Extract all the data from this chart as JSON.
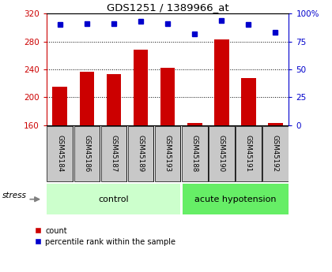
{
  "title": "GDS1251 / 1389966_at",
  "samples": [
    "GSM45184",
    "GSM45186",
    "GSM45187",
    "GSM45189",
    "GSM45193",
    "GSM45188",
    "GSM45190",
    "GSM45191",
    "GSM45192"
  ],
  "counts": [
    215,
    237,
    233,
    268,
    242,
    163,
    283,
    228,
    163
  ],
  "percentiles": [
    90,
    91,
    91,
    93,
    91,
    82,
    94,
    90,
    83
  ],
  "n_control": 5,
  "n_acute": 4,
  "bar_color": "#cc0000",
  "dot_color": "#0000cc",
  "ylim_left": [
    160,
    320
  ],
  "ylim_right": [
    0,
    100
  ],
  "yticks_left": [
    160,
    200,
    240,
    280,
    320
  ],
  "yticks_right": [
    0,
    25,
    50,
    75,
    100
  ],
  "ytick_right_labels": [
    "0",
    "25",
    "50",
    "75",
    "100%"
  ],
  "grid_lines": [
    200,
    240,
    280
  ],
  "control_color": "#ccffcc",
  "acute_color": "#66ee66",
  "label_bg_color": "#c8c8c8",
  "left_axis_color": "#cc0000",
  "right_axis_color": "#0000cc",
  "bar_width": 0.55
}
